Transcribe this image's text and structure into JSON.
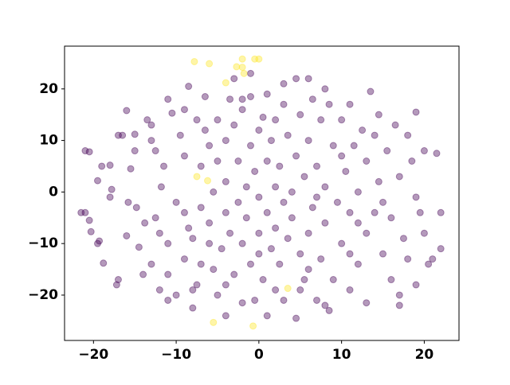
{
  "chart_data": {
    "type": "scatter",
    "xlim": [
      -23.5,
      24.2
    ],
    "ylim": [
      -28.8,
      28.3
    ],
    "xticks": [
      {
        "value": -20,
        "label": "−20"
      },
      {
        "value": -10,
        "label": "−10"
      },
      0,
      10,
      20
    ],
    "yticks": [
      {
        "value": -20,
        "label": "−20"
      },
      {
        "value": -10,
        "label": "−10"
      },
      0,
      10,
      20
    ],
    "series": [
      {
        "color": "#440154",
        "x": [
          -21.5,
          -21,
          -20.5,
          -21,
          -20.3,
          -20.5,
          -19.5,
          -19.3,
          -18.8,
          -19.5,
          -19,
          -18,
          -17.8,
          -17.2,
          -17,
          -17,
          -16.5,
          -16,
          -16,
          -15.8,
          -15.5,
          -15,
          -14.8,
          -14.5,
          -13.8,
          -13.5,
          -13,
          -13,
          -12.5,
          -12.5,
          -12,
          -11.8,
          -11.5,
          -11,
          -11,
          -10.5,
          -10,
          -10,
          -9.5,
          -9,
          -9,
          -9,
          -8.5,
          -8.5,
          -8,
          -8,
          -7.5,
          -7.5,
          -7,
          -7,
          -7,
          -6.5,
          -6.5,
          -6,
          -6,
          -5.5,
          -5.5,
          -5,
          -5,
          -5,
          -4.5,
          -4,
          -4,
          -4,
          -3.5,
          -3.5,
          -3,
          -3,
          -2.5,
          -2.5,
          -2,
          -2,
          -2,
          -1.5,
          -1.5,
          -1,
          -1,
          -1,
          -0.5,
          -0.5,
          0,
          0,
          0,
          0.5,
          0.5,
          1,
          1,
          1,
          1.5,
          1.5,
          2,
          2,
          2,
          2.5,
          2.5,
          3,
          3,
          3,
          3.5,
          3.5,
          4,
          4,
          4.5,
          4.5,
          4.5,
          5,
          5,
          5.5,
          5.5,
          6,
          6,
          6.5,
          6.5,
          7,
          7,
          7.5,
          7.5,
          8,
          8,
          8.5,
          8.5,
          9,
          9,
          9.5,
          10,
          10,
          10.5,
          11,
          11,
          11.5,
          12,
          12,
          12.5,
          13,
          13,
          13,
          13.5,
          14,
          14.5,
          14.5,
          15,
          15.5,
          16,
          16,
          16.5,
          17,
          17,
          17.5,
          18,
          18,
          18.5,
          19,
          19,
          19.5,
          20,
          20.5,
          21,
          21.5,
          22,
          22,
          20,
          19,
          17,
          8,
          5,
          -8,
          -11,
          -13,
          -14,
          -3,
          -2,
          3,
          7,
          10,
          12,
          15,
          -15,
          -18,
          -12,
          -6,
          0,
          6,
          11,
          2,
          -4,
          14,
          -9,
          -4,
          1,
          6,
          8,
          -1,
          -11,
          11
        ],
        "values": [
          -4,
          8,
          7.8,
          -4,
          -7.7,
          -5.5,
          -10,
          -9.5,
          -13.8,
          2.2,
          5,
          5.2,
          0.5,
          -18,
          -17,
          11,
          11,
          15.8,
          -8.5,
          -2,
          4.5,
          11.2,
          -3,
          -10.7,
          -6,
          14,
          -14,
          13,
          -5,
          8,
          -19,
          1,
          5,
          -16,
          -10,
          15.3,
          -2,
          -20,
          11,
          -13,
          -4,
          7,
          20.5,
          -7,
          -9,
          -22.5,
          -18,
          14,
          5,
          -3,
          -14,
          12,
          18.5,
          -6,
          9,
          0,
          -15,
          -20,
          6,
          14,
          -11,
          -4,
          2,
          10,
          18,
          -8,
          -16,
          13,
          -2,
          6,
          -10,
          -21.5,
          16,
          1,
          -5,
          9,
          -14,
          18.5,
          -21,
          4,
          -8,
          12,
          -1,
          14.5,
          -17,
          6,
          -4,
          19,
          -11,
          10,
          1,
          -7,
          14,
          -14,
          5,
          -2,
          17,
          -21,
          11,
          -9,
          0,
          -5,
          22,
          7,
          -24.5,
          -12,
          15,
          3,
          -17,
          -8,
          10,
          18,
          -3,
          -21,
          5,
          -13,
          14,
          -6,
          1,
          17,
          -23,
          9,
          -17,
          -2,
          14,
          -10,
          4,
          -19,
          -4,
          9,
          0,
          -14,
          12,
          -21.5,
          6,
          -8,
          19.5,
          -4,
          2,
          15,
          -12,
          8,
          -17,
          -5,
          13,
          3,
          -20,
          -9,
          11,
          -13,
          6,
          -1,
          -18,
          -4,
          8,
          -14,
          -13,
          7.5,
          -11,
          -4,
          -8,
          15.5,
          -22,
          -22,
          -19,
          -19,
          -21,
          10,
          -16,
          22,
          18,
          21,
          -1,
          7,
          -6,
          -2,
          8,
          -1,
          -8,
          -10,
          -12,
          -15,
          -12,
          -19,
          -18,
          11,
          16,
          -24,
          -24,
          22,
          20,
          23,
          18,
          17
        ]
      },
      {
        "color": "#fde725",
        "x": [
          -7.8,
          -6,
          -2.7,
          -2,
          -2,
          -0.5,
          0,
          -1.8,
          -4,
          -7.5,
          -6.2,
          3.5,
          -5.5,
          -0.7
        ],
        "values": [
          25.3,
          24.9,
          24.3,
          24.2,
          25.8,
          25.8,
          25.8,
          23,
          21.2,
          3,
          2.2,
          -18.7,
          -25.3,
          -26
        ]
      }
    ]
  }
}
